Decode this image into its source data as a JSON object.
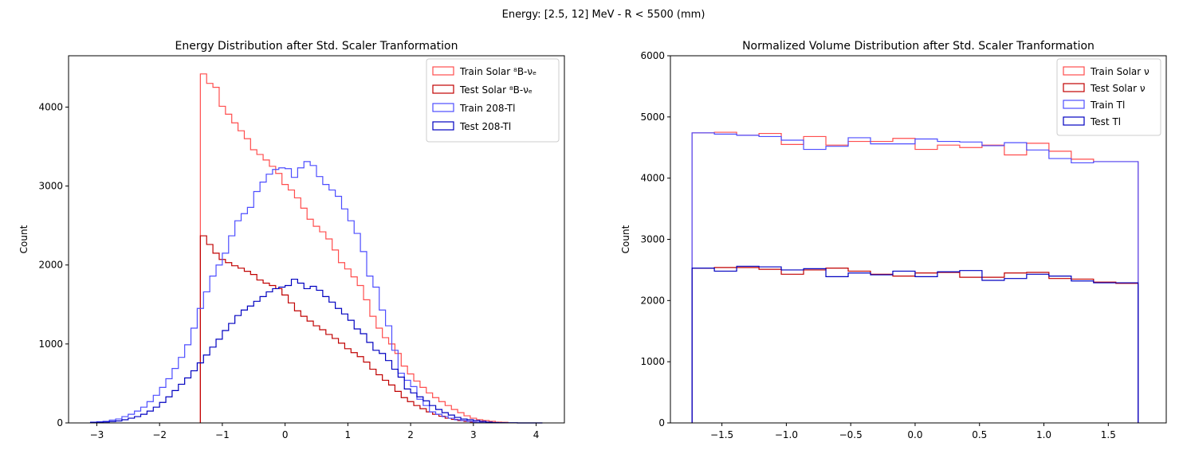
{
  "figure": {
    "suptitle": "Energy: [2.5, 12] MeV - R < 5500 (mm)"
  },
  "colors": {
    "train_solar": "#ff4d4d",
    "test_solar": "#c00000",
    "train_tl": "#4d4dff",
    "test_tl": "#0000c0"
  },
  "chart_data": [
    {
      "type": "histogram",
      "title": "Energy Distribution after Std. Scaler Tranformation",
      "xlabel": "",
      "ylabel": "Count",
      "xlim": [
        -3.45,
        4.45
      ],
      "ylim": [
        0,
        4650
      ],
      "xticks": [
        -3,
        -2,
        -1,
        0,
        1,
        2,
        3,
        4
      ],
      "yticks": [
        0,
        1000,
        2000,
        3000,
        4000
      ],
      "grid": false,
      "legend_position": "top-right",
      "series": [
        {
          "name": "Train Solar ⁸B-νₑ",
          "color_key": "train_solar",
          "bin_start": -1.35,
          "bin_width": 0.1,
          "counts": [
            4420,
            4300,
            4250,
            4010,
            3910,
            3800,
            3700,
            3600,
            3460,
            3400,
            3330,
            3250,
            3160,
            3020,
            2950,
            2850,
            2720,
            2580,
            2490,
            2420,
            2330,
            2190,
            2030,
            1950,
            1850,
            1740,
            1560,
            1350,
            1200,
            1080,
            1000,
            880,
            720,
            620,
            530,
            450,
            380,
            320,
            270,
            220,
            170,
            130,
            90,
            60,
            40,
            30,
            20,
            10,
            8
          ]
        },
        {
          "name": "Test Solar ⁸B-νₑ",
          "color_key": "test_solar",
          "bin_start": -1.35,
          "bin_width": 0.1,
          "counts": [
            2370,
            2260,
            2150,
            2070,
            2030,
            1990,
            1960,
            1920,
            1880,
            1810,
            1770,
            1740,
            1700,
            1620,
            1520,
            1420,
            1350,
            1290,
            1230,
            1180,
            1120,
            1070,
            1010,
            940,
            890,
            840,
            770,
            680,
            610,
            540,
            480,
            400,
            320,
            270,
            220,
            180,
            140,
            110,
            85,
            60,
            45,
            30,
            20,
            12,
            8,
            5,
            3,
            2,
            1
          ]
        },
        {
          "name": "Train 208-Tl",
          "color_key": "train_tl",
          "bin_start": -3.1,
          "bin_width": 0.1,
          "counts": [
            10,
            15,
            20,
            35,
            50,
            80,
            110,
            150,
            200,
            270,
            350,
            450,
            560,
            690,
            830,
            990,
            1200,
            1450,
            1660,
            1860,
            2000,
            2150,
            2370,
            2560,
            2650,
            2730,
            2930,
            3050,
            3150,
            3210,
            3230,
            3220,
            3110,
            3230,
            3310,
            3260,
            3120,
            3020,
            2950,
            2870,
            2710,
            2560,
            2400,
            2170,
            1860,
            1720,
            1430,
            1230,
            920,
            630,
            540,
            460,
            300,
            220,
            140,
            110,
            80,
            60,
            40,
            30,
            20,
            10,
            5,
            3,
            2,
            1,
            1,
            1,
            0,
            0,
            0,
            0
          ]
        },
        {
          "name": "Test 208-Tl",
          "color_key": "test_tl",
          "bin_start": -3.1,
          "bin_width": 0.1,
          "counts": [
            5,
            8,
            12,
            18,
            25,
            40,
            60,
            80,
            110,
            150,
            200,
            260,
            330,
            410,
            490,
            570,
            660,
            760,
            860,
            960,
            1060,
            1170,
            1260,
            1360,
            1430,
            1480,
            1540,
            1600,
            1660,
            1700,
            1720,
            1740,
            1820,
            1770,
            1700,
            1730,
            1680,
            1600,
            1530,
            1450,
            1380,
            1300,
            1190,
            1130,
            1020,
            920,
            880,
            790,
            680,
            580,
            430,
            380,
            330,
            280,
            220,
            170,
            130,
            100,
            70,
            50,
            40,
            30,
            20,
            10,
            5,
            3,
            2,
            1,
            0,
            0,
            0,
            0
          ]
        }
      ]
    },
    {
      "type": "histogram",
      "title": "Normalized Volume Distribution after Std. Scaler Tranformation",
      "xlabel": "",
      "ylabel": "Count",
      "xlim": [
        -1.9,
        1.95
      ],
      "ylim": [
        0,
        6000
      ],
      "xticks": [
        -1.5,
        -1.0,
        -0.5,
        0.0,
        0.5,
        1.0,
        1.5
      ],
      "xticklabels": [
        "−1.5",
        "−1.0",
        "−0.5",
        "0.0",
        "0.5",
        "1.0",
        "1.5"
      ],
      "yticks": [
        0,
        1000,
        2000,
        3000,
        4000,
        5000,
        6000
      ],
      "grid": false,
      "legend_position": "top-right",
      "series": [
        {
          "name": "Train Solar ν",
          "color_key": "train_solar",
          "bin_start": -1.732,
          "bin_width": 0.1732,
          "counts": [
            4740,
            4750,
            4700,
            4730,
            4550,
            4680,
            4540,
            4600,
            4600,
            4650,
            4470,
            4540,
            4500,
            4540,
            4380,
            4570,
            4440,
            4310,
            4270,
            4270
          ]
        },
        {
          "name": "Test Solar ν",
          "color_key": "test_solar",
          "bin_start": -1.732,
          "bin_width": 0.1732,
          "counts": [
            2530,
            2540,
            2540,
            2510,
            2430,
            2500,
            2530,
            2480,
            2430,
            2400,
            2450,
            2460,
            2380,
            2380,
            2450,
            2460,
            2360,
            2350,
            2300,
            2280
          ]
        },
        {
          "name": "Train Tl",
          "color_key": "train_tl",
          "bin_start": -1.732,
          "bin_width": 0.1732,
          "counts": [
            4740,
            4720,
            4700,
            4680,
            4620,
            4470,
            4520,
            4660,
            4560,
            4560,
            4640,
            4600,
            4590,
            4530,
            4580,
            4460,
            4320,
            4250,
            4270,
            4270
          ]
        },
        {
          "name": "Test Tl",
          "color_key": "test_tl",
          "bin_start": -1.732,
          "bin_width": 0.1732,
          "counts": [
            2530,
            2480,
            2560,
            2550,
            2500,
            2520,
            2390,
            2450,
            2420,
            2480,
            2390,
            2470,
            2490,
            2330,
            2360,
            2430,
            2400,
            2320,
            2290,
            2290
          ]
        }
      ]
    }
  ]
}
